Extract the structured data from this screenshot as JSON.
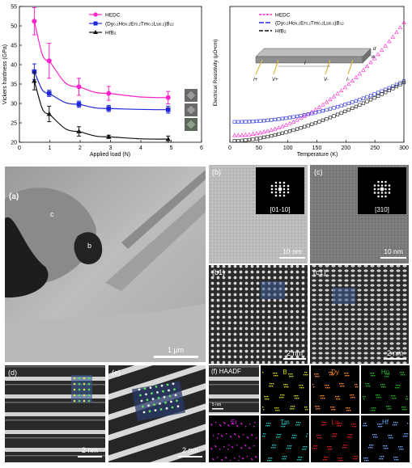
{
  "chart_data": [
    {
      "type": "line",
      "ylabel": "Vickers hardness (GPa)",
      "xlabel": "Applied load (N)",
      "xlim": [
        0,
        6
      ],
      "ylim": [
        20,
        55
      ],
      "xticks": [
        "0",
        "1",
        "2",
        "3",
        "4",
        "5",
        "6"
      ],
      "yticks": [
        "20",
        "25",
        "30",
        "35",
        "40",
        "45",
        "50",
        "55"
      ],
      "legend_position": "top-center",
      "x": [
        0.49,
        0.98,
        1.96,
        2.94,
        4.9
      ],
      "series": [
        {
          "name": "HEDC",
          "color": "#ff22cc",
          "marker": "circle",
          "values": [
            51.2,
            41.0,
            34.3,
            32.6,
            31.5
          ],
          "errors": [
            3.5,
            4.5,
            2.2,
            1.8,
            1.6
          ]
        },
        {
          "name": "(Dy0.2Ho0.2Er0.2Tm0.2Lu0.2)B12",
          "color": "#1e28d8",
          "marker": "square",
          "values": [
            38.2,
            32.6,
            29.8,
            28.7,
            28.4
          ],
          "errors": [
            2.0,
            0.8,
            0.8,
            0.8,
            0.9
          ]
        },
        {
          "name": "HfB2",
          "color": "#111111",
          "marker": "triangle",
          "values": [
            35.8,
            27.3,
            22.8,
            21.4,
            20.8
          ],
          "errors": [
            2.3,
            2.0,
            1.2,
            0.4,
            0.8
          ]
        }
      ]
    },
    {
      "type": "scatter",
      "ylabel": "Electrical Resistivity (μΩ•cm)",
      "xlabel": "Temperature (K)",
      "xlim": [
        0,
        300
      ],
      "ylim": [
        0,
        50
      ],
      "xticks": [
        "0",
        "50",
        "100",
        "150",
        "200",
        "250",
        "300"
      ],
      "legend_position": "top-center",
      "inset_labels": [
        "I+",
        "V+",
        "l",
        "V-",
        "I-",
        "w",
        "d"
      ],
      "series": [
        {
          "name": "HEDC",
          "color": "#ff22cc",
          "marker": "open-triangle",
          "start": 2.5,
          "end": 44.0,
          "shape": 2.0
        },
        {
          "name": "(Dy0.2Ho0.2Er0.2Tm0.2Lu0.2)B12",
          "color": "#1e28d8",
          "marker": "open-square",
          "start": 7.5,
          "end": 22.5,
          "shape": 2.0
        },
        {
          "name": "HfB2",
          "color": "#111111",
          "marker": "open-square",
          "start": 0.5,
          "end": 22.0,
          "shape": 1.6
        }
      ]
    }
  ],
  "micrographs": {
    "a": {
      "label": "(a)",
      "region_c": "c",
      "region_b": "b",
      "scalebar": "1 μm"
    },
    "b": {
      "label": "(b)",
      "zone_axis": "[01-10]",
      "scalebar": "10 nm"
    },
    "c": {
      "label": "(c)",
      "zone_axis": "[310]",
      "scalebar": "10 nm"
    },
    "b1": {
      "label": "(b1)",
      "scalebar": "2 nm"
    },
    "c1": {
      "label": "(c1)",
      "scalebar": "2 nm"
    },
    "d": {
      "label": "(d)",
      "scalebar": "2 nm"
    },
    "e": {
      "label": "(e)",
      "scalebar": "2 nm"
    },
    "f": {
      "label": "(f) HAADF",
      "scalebar": "5 nm",
      "elements": [
        {
          "name": "B",
          "color": "#d8d800"
        },
        {
          "name": "Dy",
          "color": "#ff8820"
        },
        {
          "name": "Ho",
          "color": "#18b818"
        },
        {
          "name": "Er",
          "color": "#e018e0"
        },
        {
          "name": "Tm",
          "color": "#10c8c8"
        },
        {
          "name": "Lu",
          "color": "#e01818"
        },
        {
          "name": "Hf",
          "color": "#6aa8ff"
        }
      ]
    }
  }
}
